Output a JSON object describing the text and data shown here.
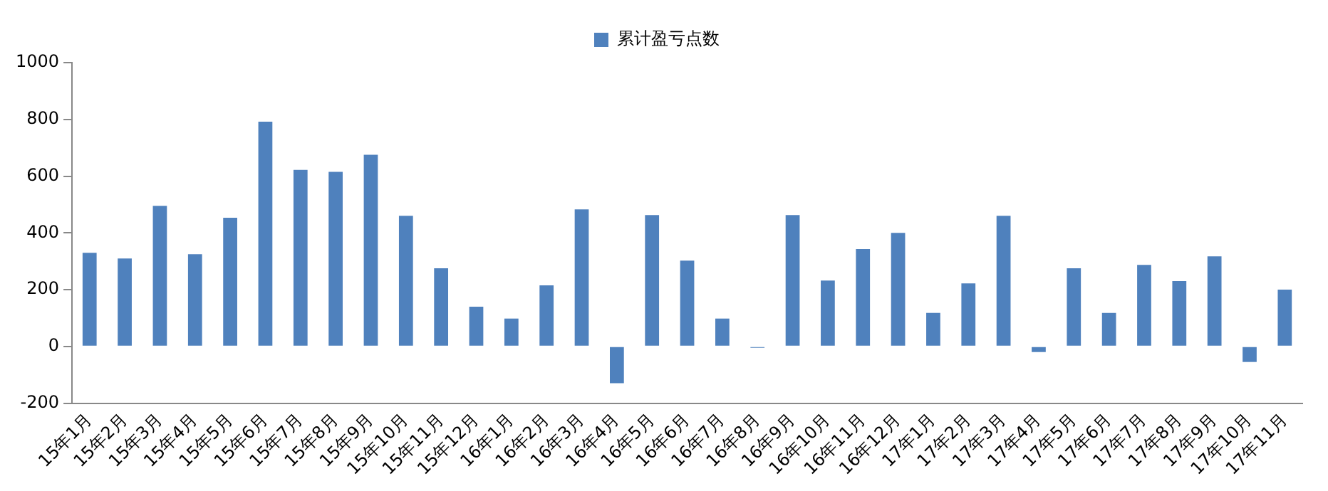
{
  "chart_data": {
    "type": "bar",
    "categories": [
      "15年1月",
      "15年2月",
      "15年3月",
      "15年4月",
      "15年5月",
      "15年6月",
      "15年7月",
      "15年8月",
      "15年9月",
      "15年10月",
      "15年11月",
      "15年12月",
      "16年1月",
      "16年2月",
      "16年3月",
      "16年4月",
      "16年5月",
      "16年6月",
      "16年7月",
      "16年8月",
      "16年9月",
      "16年10月",
      "16年11月",
      "16年12月",
      "17年1月",
      "17年2月",
      "17年3月",
      "17年4月",
      "17年5月",
      "17年6月",
      "17年7月",
      "17年8月",
      "17年9月",
      "17年10月",
      "17年11月"
    ],
    "series": [
      {
        "name": "累计盈亏点数",
        "color": "#4f81bd",
        "values": [
          330,
          310,
          495,
          325,
          453,
          792,
          622,
          615,
          675,
          460,
          275,
          140,
          98,
          215,
          483,
          -130,
          463,
          302,
          98,
          -5,
          463,
          232,
          343,
          400,
          118,
          222,
          460,
          -20,
          275,
          118,
          287,
          230,
          317,
          -55,
          200
        ]
      }
    ],
    "ylim": [
      -200,
      1000
    ],
    "yticks": [
      -200,
      0,
      200,
      400,
      600,
      800,
      1000
    ],
    "grid": false,
    "legend": "top"
  }
}
